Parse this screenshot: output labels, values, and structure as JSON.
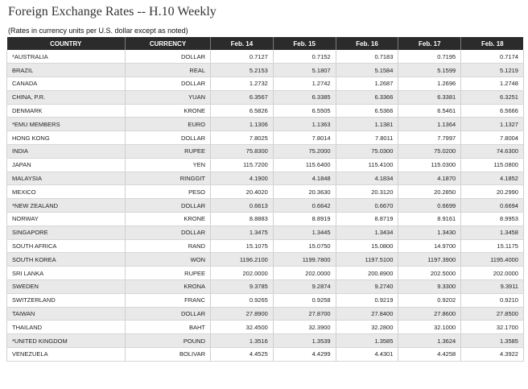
{
  "title": "Foreign Exchange Rates -- H.10 Weekly",
  "subtitle": "(Rates in currency units per U.S. dollar except as noted)",
  "columns": [
    "COUNTRY",
    "CURRENCY",
    "Feb. 14",
    "Feb. 15",
    "Feb. 16",
    "Feb. 17",
    "Feb. 18"
  ],
  "rows": [
    [
      "*AUSTRALIA",
      "DOLLAR",
      "0.7127",
      "0.7152",
      "0.7183",
      "0.7195",
      "0.7174"
    ],
    [
      "BRAZIL",
      "REAL",
      "5.2153",
      "5.1807",
      "5.1584",
      "5.1599",
      "5.1219"
    ],
    [
      "CANADA",
      "DOLLAR",
      "1.2732",
      "1.2742",
      "1.2687",
      "1.2696",
      "1.2748"
    ],
    [
      "CHINA, P.R.",
      "YUAN",
      "6.3567",
      "6.3385",
      "6.3366",
      "6.3381",
      "6.3251"
    ],
    [
      "DENMARK",
      "KRONE",
      "6.5826",
      "6.5505",
      "6.5366",
      "6.5461",
      "6.5666"
    ],
    [
      "*EMU MEMBERS",
      "EURO",
      "1.1306",
      "1.1363",
      "1.1381",
      "1.1364",
      "1.1327"
    ],
    [
      "HONG KONG",
      "DOLLAR",
      "7.8025",
      "7.8014",
      "7.8011",
      "7.7997",
      "7.8004"
    ],
    [
      "INDIA",
      "RUPEE",
      "75.8300",
      "75.2000",
      "75.0300",
      "75.0200",
      "74.6300"
    ],
    [
      "JAPAN",
      "YEN",
      "115.7200",
      "115.6400",
      "115.4100",
      "115.0300",
      "115.0800"
    ],
    [
      "MALAYSIA",
      "RINGGIT",
      "4.1900",
      "4.1848",
      "4.1834",
      "4.1870",
      "4.1852"
    ],
    [
      "MEXICO",
      "PESO",
      "20.4020",
      "20.3630",
      "20.3120",
      "20.2850",
      "20.2990"
    ],
    [
      "*NEW ZEALAND",
      "DOLLAR",
      "0.6613",
      "0.6642",
      "0.6670",
      "0.6699",
      "0.6694"
    ],
    [
      "NORWAY",
      "KRONE",
      "8.8883",
      "8.8919",
      "8.8719",
      "8.9161",
      "8.9953"
    ],
    [
      "SINGAPORE",
      "DOLLAR",
      "1.3475",
      "1.3445",
      "1.3434",
      "1.3430",
      "1.3458"
    ],
    [
      "SOUTH AFRICA",
      "RAND",
      "15.1075",
      "15.0750",
      "15.0800",
      "14.9700",
      "15.1175"
    ],
    [
      "SOUTH KOREA",
      "WON",
      "1196.2100",
      "1199.7800",
      "1197.5100",
      "1197.3900",
      "1195.4000"
    ],
    [
      "SRI LANKA",
      "RUPEE",
      "202.0000",
      "202.0000",
      "200.8900",
      "202.5000",
      "202.0000"
    ],
    [
      "SWEDEN",
      "KRONA",
      "9.3785",
      "9.2874",
      "9.2740",
      "9.3300",
      "9.3911"
    ],
    [
      "SWITZERLAND",
      "FRANC",
      "0.9265",
      "0.9258",
      "0.9219",
      "0.9202",
      "0.9210"
    ],
    [
      "TAIWAN",
      "DOLLAR",
      "27.8900",
      "27.8700",
      "27.8400",
      "27.8600",
      "27.8500"
    ],
    [
      "THAILAND",
      "BAHT",
      "32.4500",
      "32.3900",
      "32.2800",
      "32.1000",
      "32.1700"
    ],
    [
      "*UNITED KINGDOM",
      "POUND",
      "1.3516",
      "1.3539",
      "1.3585",
      "1.3624",
      "1.3585"
    ],
    [
      "VENEZUELA",
      "BOLIVAR",
      "4.4525",
      "4.4299",
      "4.4301",
      "4.4258",
      "4.3922"
    ]
  ]
}
